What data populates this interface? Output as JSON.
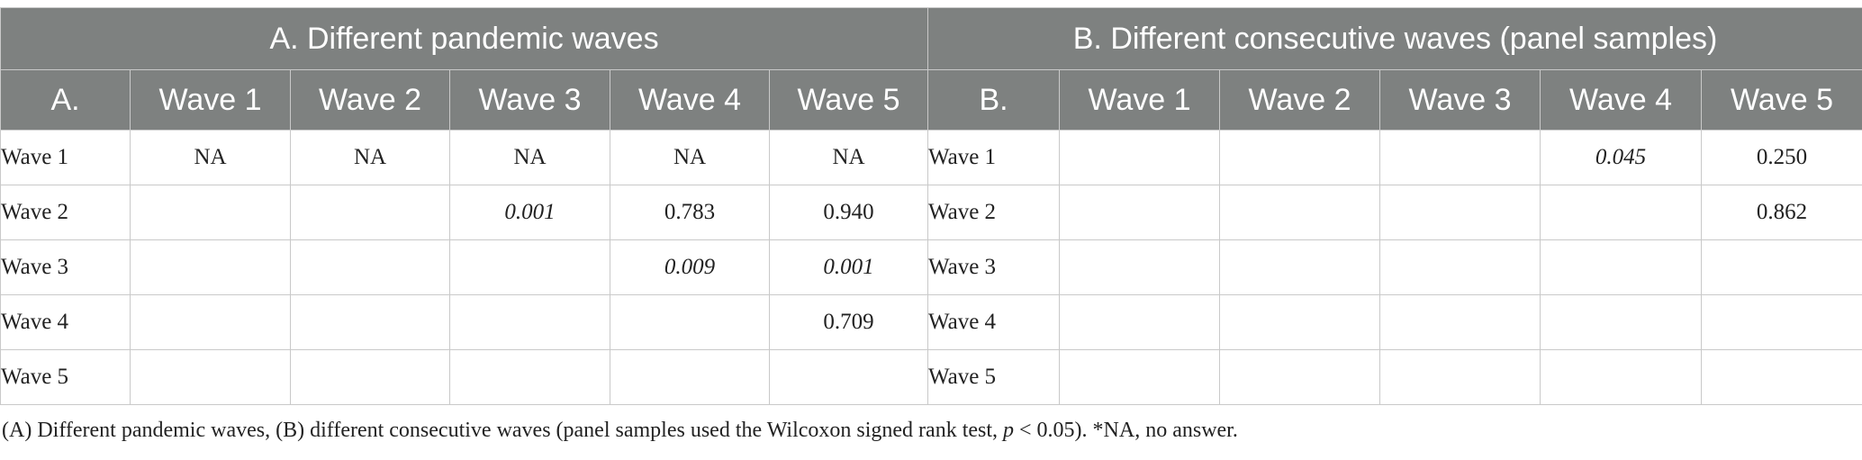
{
  "panels": {
    "a_title": "A. Different pandemic waves",
    "b_title": "B. Different consecutive waves (panel samples)"
  },
  "columns": {
    "a_corner": "A.",
    "b_corner": "B.",
    "waves": [
      "Wave 1",
      "Wave 2",
      "Wave 3",
      "Wave 4",
      "Wave 5"
    ]
  },
  "rows": [
    {
      "label": "Wave 1",
      "a": [
        "NA",
        "NA",
        "NA",
        "NA",
        "NA"
      ],
      "b": [
        "",
        "",
        "",
        "0.045",
        "0.250"
      ]
    },
    {
      "label": "Wave 2",
      "a": [
        "",
        "",
        "0.001",
        "0.783",
        "0.940"
      ],
      "b": [
        "",
        "",
        "",
        "",
        "0.862"
      ]
    },
    {
      "label": "Wave 3",
      "a": [
        "",
        "",
        "",
        "0.009",
        "0.001"
      ],
      "b": [
        "",
        "",
        "",
        "",
        ""
      ]
    },
    {
      "label": "Wave 4",
      "a": [
        "",
        "",
        "",
        "",
        "0.709"
      ],
      "b": [
        "",
        "",
        "",
        "",
        ""
      ]
    },
    {
      "label": "Wave 5",
      "a": [
        "",
        "",
        "",
        "",
        ""
      ],
      "b": [
        "",
        "",
        "",
        "",
        ""
      ]
    }
  ],
  "footnote": {
    "part1": "(A) Different pandemic waves, (B) different consecutive waves (panel samples used the Wilcoxon signed rank test, ",
    "p": "p",
    "part2": " < 0.05). *NA, no answer."
  }
}
